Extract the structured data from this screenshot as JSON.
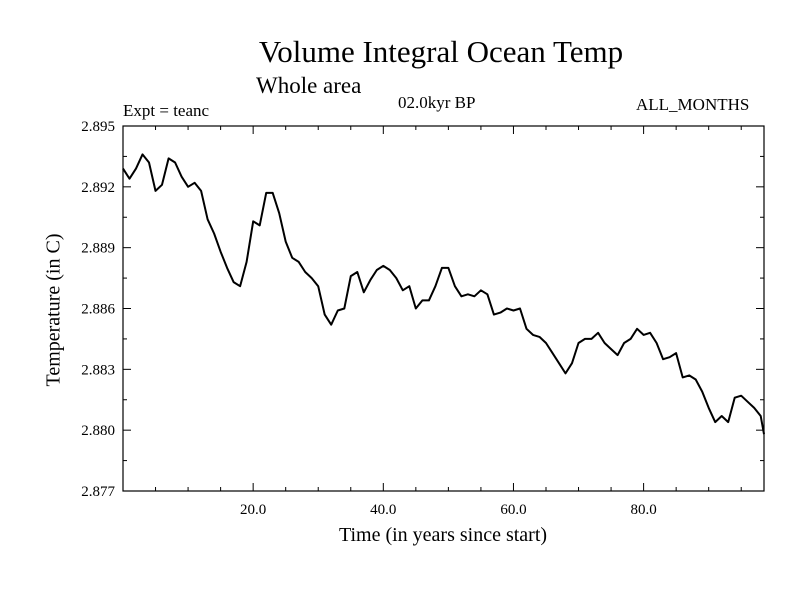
{
  "chart_data": {
    "type": "line",
    "title": "Volume Integral Ocean Temp",
    "subtitle": "Whole area",
    "annotations": {
      "experiment": "Expt = teanc",
      "period": "02.0kyr BP",
      "months": "ALL_MONTHS"
    },
    "xlabel": "Time (in years since start)",
    "ylabel": "Temperature (in C)",
    "xlim": [
      0,
      98.5
    ],
    "ylim": [
      2.877,
      2.895
    ],
    "xticks": [
      20,
      40,
      60,
      80
    ],
    "xtick_labels": [
      "20.0",
      "40.0",
      "60.0",
      "80.0"
    ],
    "yticks": [
      2.877,
      2.88,
      2.883,
      2.886,
      2.889,
      2.892,
      2.895
    ],
    "ytick_labels": [
      "2.877",
      "2.880",
      "2.883",
      "2.886",
      "2.889",
      "2.892",
      "2.895"
    ],
    "grid": false,
    "series": [
      {
        "name": "Temperature",
        "x": [
          0,
          1,
          2,
          3,
          4,
          5,
          6,
          7,
          8,
          9,
          10,
          11,
          12,
          13,
          14,
          15,
          16,
          17,
          18,
          19,
          20,
          21,
          22,
          23,
          24,
          25,
          26,
          27,
          28,
          29,
          30,
          31,
          32,
          33,
          34,
          35,
          36,
          37,
          38,
          39,
          40,
          41,
          42,
          43,
          44,
          45,
          46,
          47,
          48,
          49,
          50,
          51,
          52,
          53,
          54,
          55,
          56,
          57,
          58,
          59,
          60,
          61,
          62,
          63,
          64,
          65,
          66,
          67,
          68,
          69,
          70,
          71,
          72,
          73,
          74,
          75,
          76,
          77,
          78,
          79,
          80,
          81,
          82,
          83,
          84,
          85,
          86,
          87,
          88,
          89,
          90,
          91,
          92,
          93,
          94,
          95,
          96,
          97,
          98,
          98.5
        ],
        "y": [
          2.8929,
          2.8924,
          2.8929,
          2.8936,
          2.8932,
          2.8918,
          2.8921,
          2.8934,
          2.8932,
          2.8925,
          2.892,
          2.8922,
          2.8918,
          2.8904,
          2.8897,
          2.8888,
          2.888,
          2.8873,
          2.8871,
          2.8883,
          2.8903,
          2.8901,
          2.8917,
          2.8917,
          2.8907,
          2.8893,
          2.8885,
          2.8883,
          2.8878,
          2.8875,
          2.8871,
          2.8857,
          2.8852,
          2.8859,
          2.886,
          2.8876,
          2.8878,
          2.8868,
          2.8874,
          2.8879,
          2.8881,
          2.8879,
          2.8875,
          2.8869,
          2.8871,
          2.886,
          2.8864,
          2.8864,
          2.8871,
          2.888,
          2.888,
          2.8871,
          2.8866,
          2.8867,
          2.8866,
          2.8869,
          2.8867,
          2.8857,
          2.8858,
          2.886,
          2.8859,
          2.886,
          2.885,
          2.8847,
          2.8846,
          2.8843,
          2.8838,
          2.8833,
          2.8828,
          2.8833,
          2.8843,
          2.8845,
          2.8845,
          2.8848,
          2.8843,
          2.884,
          2.8837,
          2.8843,
          2.8845,
          2.885,
          2.8847,
          2.8848,
          2.8843,
          2.8835,
          2.8836,
          2.8838,
          2.8826,
          2.8827,
          2.8825,
          2.8819,
          2.8811,
          2.8804,
          2.8807,
          2.8804,
          2.8816,
          2.8817,
          2.8814,
          2.8811,
          2.8807,
          2.8798
        ]
      }
    ]
  }
}
